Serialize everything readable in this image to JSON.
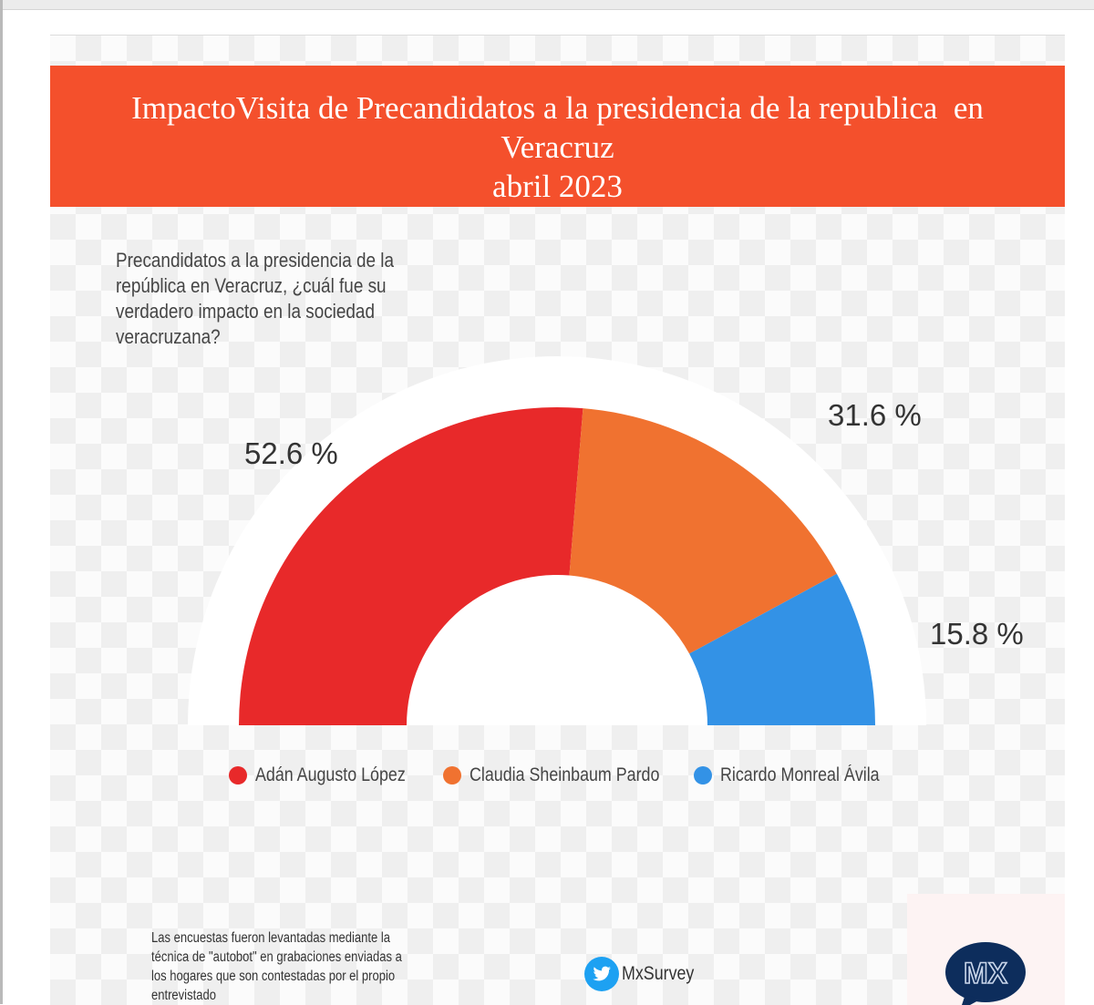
{
  "header": {
    "title_lines": [
      "ImpactoVisita de Precandidatos a la presidencia de la republica  en",
      "Veracruz",
      "abril 2023"
    ]
  },
  "question": "Precandidatos a la presidencia de la\nrepública  en Veracruz, ¿cuál fue su\nverdadero impacto en la sociedad\nveracruzana?",
  "chart_data": {
    "type": "pie",
    "subtype": "semicircle-donut",
    "series": [
      {
        "name": "Adán Augusto López",
        "value": 52.6,
        "label": "52.6 %",
        "color": "#e8292a"
      },
      {
        "name": "Claudia Sheinbaum Pardo",
        "value": 31.6,
        "label": "31.6 %",
        "color": "#f07230"
      },
      {
        "name": "Ricardo Monreal Ávila",
        "value": 15.8,
        "label": "15.8 %",
        "color": "#3392e6"
      }
    ],
    "legend_position": "bottom"
  },
  "footer": {
    "note": "Las encuestas fueron levantadas mediante la\ntécnica de \"autobot\" en grabaciones enviadas a\nlos hogares que son contestadas por el propio\nentrevistado",
    "twitter_handle": "MxSurvey",
    "logo_text": "MX"
  },
  "colors": {
    "banner": "#f4502c",
    "logo": "#0d2d5c"
  }
}
